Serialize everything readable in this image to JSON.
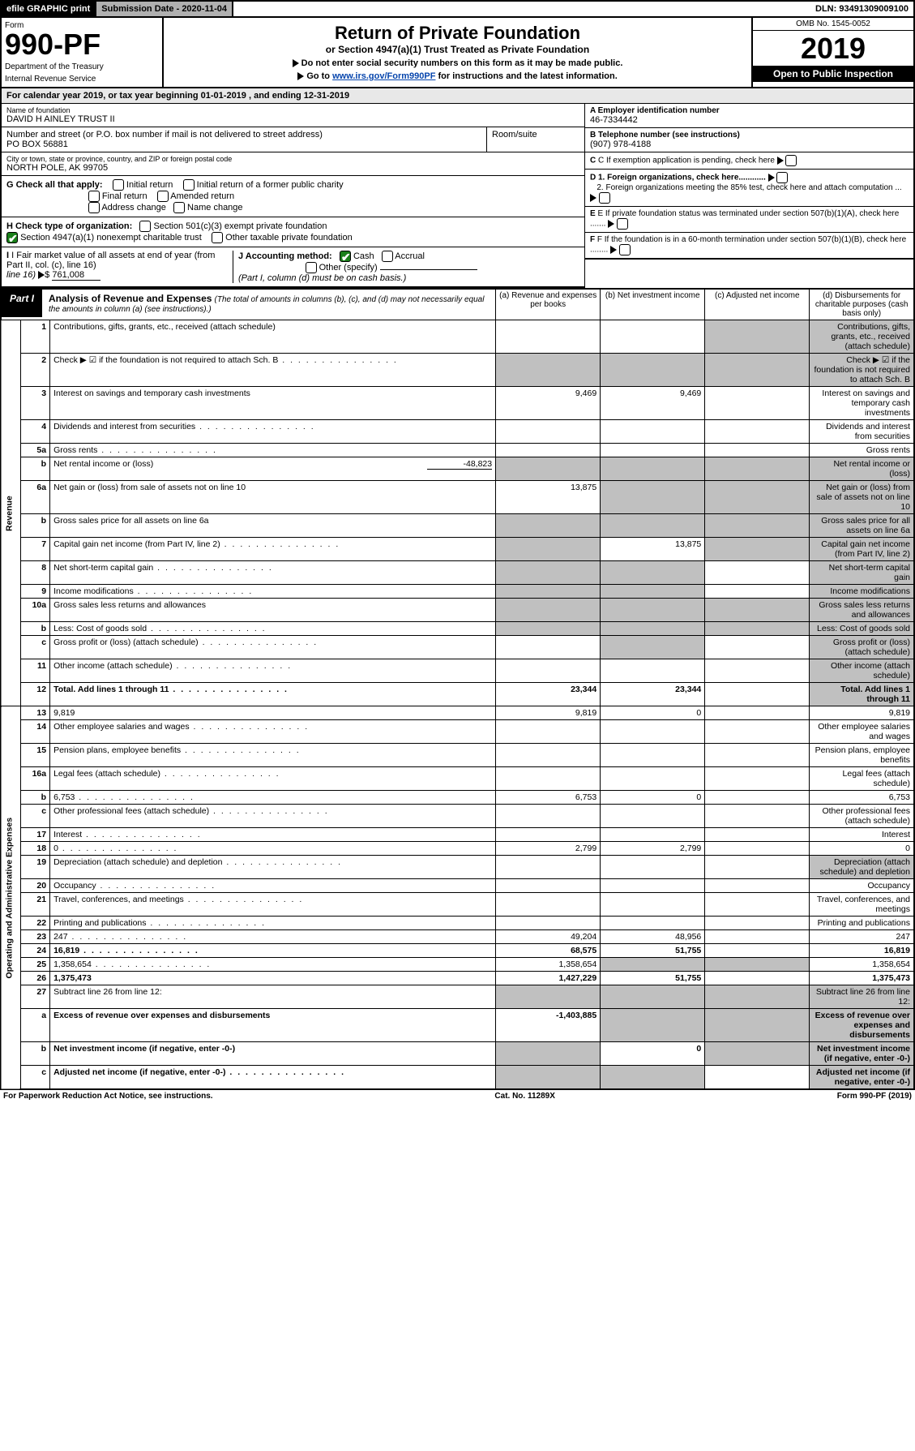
{
  "topbar": {
    "efile": "efile GRAPHIC print",
    "submission": "Submission Date - 2020-11-04",
    "dln": "DLN: 93491309009100"
  },
  "header": {
    "form_label": "Form",
    "form_no": "990-PF",
    "dept": "Department of the Treasury",
    "irs": "Internal Revenue Service",
    "title": "Return of Private Foundation",
    "subtitle": "or Section 4947(a)(1) Trust Treated as Private Foundation",
    "note1": "Do not enter social security numbers on this form as it may be made public.",
    "note2_pre": "Go to ",
    "note2_link": "www.irs.gov/Form990PF",
    "note2_post": " for instructions and the latest information.",
    "omb": "OMB No. 1545-0052",
    "year": "2019",
    "open": "Open to Public Inspection"
  },
  "calyear": "For calendar year 2019, or tax year beginning 01-01-2019                         , and ending 12-31-2019",
  "name_lbl": "Name of foundation",
  "name_val": "DAVID H AINLEY TRUST II",
  "addr_lbl": "Number and street (or P.O. box number if mail is not delivered to street address)",
  "addr_val": "PO BOX 56881",
  "room_lbl": "Room/suite",
  "city_lbl": "City or town, state or province, country, and ZIP or foreign postal code",
  "city_val": "NORTH POLE, AK  99705",
  "ein_lbl": "A Employer identification number",
  "ein_val": "46-7334442",
  "tel_lbl": "B Telephone number (see instructions)",
  "tel_val": "(907) 978-4188",
  "c_lbl": "C If exemption application is pending, check here",
  "d1_lbl": "D 1. Foreign organizations, check here............",
  "d2_lbl": "2. Foreign organizations meeting the 85% test, check here and attach computation ...",
  "e_lbl": "E If private foundation status was terminated under section 507(b)(1)(A), check here .......",
  "f_lbl": "F If the foundation is in a 60-month termination under section 507(b)(1)(B), check here ........",
  "g_lbl": "G Check all that apply:",
  "g_opts": {
    "initial": "Initial return",
    "initial_former": "Initial return of a former public charity",
    "final": "Final return",
    "amended": "Amended return",
    "address": "Address change",
    "name": "Name change"
  },
  "h_lbl": "H Check type of organization:",
  "h_opts": {
    "c3": "Section 501(c)(3) exempt private foundation",
    "a1": "Section 4947(a)(1) nonexempt charitable trust",
    "other": "Other taxable private foundation"
  },
  "i_lbl": "I Fair market value of all assets at end of year (from Part II, col. (c), line 16) ",
  "i_val": "761,008",
  "j_lbl": "J Accounting method:",
  "j_opts": {
    "cash": "Cash",
    "accrual": "Accrual",
    "other": "Other (specify)"
  },
  "j_note": "(Part I, column (d) must be on cash basis.)",
  "part1": {
    "tag": "Part I",
    "title": "Analysis of Revenue and Expenses",
    "desc": "(The total of amounts in columns (b), (c), and (d) may not necessarily equal the amounts in column (a) (see instructions).)"
  },
  "cols": {
    "a": "(a)   Revenue and expenses per books",
    "b": "(b)  Net investment income",
    "c": "(c)  Adjusted net income",
    "d": "(d)  Disbursements for charitable purposes (cash basis only)"
  },
  "revenue_label": "Revenue",
  "expense_label": "Operating and Administrative Expenses",
  "rows": [
    {
      "n": "1",
      "d": "Contributions, gifts, grants, etc., received (attach schedule)",
      "a": "",
      "b": "",
      "grey_cd": true
    },
    {
      "n": "2",
      "d": "Check ▶ ☑ if the foundation is not required to attach Sch. B",
      "dots": true,
      "a": "",
      "grey_abcd": true,
      "nd_bold_not": true
    },
    {
      "n": "3",
      "d": "Interest on savings and temporary cash investments",
      "a": "9,469",
      "b": "9,469"
    },
    {
      "n": "4",
      "d": "Dividends and interest from securities",
      "dots": true,
      "a": "",
      "b": ""
    },
    {
      "n": "5a",
      "d": "Gross rents",
      "dots": true,
      "a": "",
      "b": ""
    },
    {
      "n": "b",
      "d": "Net rental income or (loss)",
      "extra": "-48,823",
      "grey_abcd": true
    },
    {
      "n": "6a",
      "d": "Net gain or (loss) from sale of assets not on line 10",
      "a": "13,875",
      "grey_bcd": true
    },
    {
      "n": "b",
      "d": "Gross sales price for all assets on line 6a",
      "grey_abcd": true
    },
    {
      "n": "7",
      "d": "Capital gain net income (from Part IV, line 2)",
      "dots": true,
      "grey_a": true,
      "b": "13,875",
      "grey_cd": true
    },
    {
      "n": "8",
      "d": "Net short-term capital gain",
      "dots": true,
      "grey_ab": true,
      "grey_d": true
    },
    {
      "n": "9",
      "d": "Income modifications",
      "dots": true,
      "grey_ab": true,
      "grey_d": true
    },
    {
      "n": "10a",
      "d": "Gross sales less returns and allowances",
      "grey_abcd": true
    },
    {
      "n": "b",
      "d": "Less: Cost of goods sold",
      "dots": true,
      "grey_abcd": true
    },
    {
      "n": "c",
      "d": "Gross profit or (loss) (attach schedule)",
      "dots": true,
      "grey_b": true,
      "grey_d": true
    },
    {
      "n": "11",
      "d": "Other income (attach schedule)",
      "dots": true,
      "grey_d": true
    },
    {
      "n": "12",
      "d": "Total. Add lines 1 through 11",
      "dots": true,
      "bold": true,
      "a": "23,344",
      "b": "23,344",
      "grey_d": true
    }
  ],
  "exp_rows": [
    {
      "n": "13",
      "d": "9,819",
      "a": "9,819",
      "b": "0"
    },
    {
      "n": "14",
      "d": "Other employee salaries and wages",
      "dots": true
    },
    {
      "n": "15",
      "d": "Pension plans, employee benefits",
      "dots": true
    },
    {
      "n": "16a",
      "d": "Legal fees (attach schedule)",
      "dots": true
    },
    {
      "n": "b",
      "d": "6,753",
      "dots": true,
      "a": "6,753",
      "b": "0"
    },
    {
      "n": "c",
      "d": "Other professional fees (attach schedule)",
      "dots": true
    },
    {
      "n": "17",
      "d": "Interest",
      "dots": true
    },
    {
      "n": "18",
      "d": "0",
      "dots": true,
      "a": "2,799",
      "b": "2,799"
    },
    {
      "n": "19",
      "d": "Depreciation (attach schedule) and depletion",
      "dots": true,
      "grey_d": true
    },
    {
      "n": "20",
      "d": "Occupancy",
      "dots": true
    },
    {
      "n": "21",
      "d": "Travel, conferences, and meetings",
      "dots": true
    },
    {
      "n": "22",
      "d": "Printing and publications",
      "dots": true
    },
    {
      "n": "23",
      "d": "247",
      "dots": true,
      "a": "49,204",
      "b": "48,956"
    },
    {
      "n": "24",
      "d": "16,819",
      "dots": true,
      "bold": true,
      "a": "68,575",
      "b": "51,755"
    },
    {
      "n": "25",
      "d": "1,358,654",
      "dots": true,
      "a": "1,358,654",
      "grey_bc": true
    },
    {
      "n": "26",
      "d": "1,375,473",
      "bold": true,
      "a": "1,427,229",
      "b": "51,755"
    },
    {
      "n": "27",
      "d": "Subtract line 26 from line 12:",
      "grey_abcd": true
    },
    {
      "n": "a",
      "d": "Excess of revenue over expenses and disbursements",
      "bold": true,
      "a": "-1,403,885",
      "grey_bcd": true
    },
    {
      "n": "b",
      "d": "Net investment income (if negative, enter -0-)",
      "bold": true,
      "grey_a": true,
      "b": "0",
      "grey_cd": true
    },
    {
      "n": "c",
      "d": "Adjusted net income (if negative, enter -0-)",
      "bold": true,
      "dots": true,
      "grey_ab": true,
      "grey_d": true
    }
  ],
  "footer": {
    "left": "For Paperwork Reduction Act Notice, see instructions.",
    "mid": "Cat. No. 11289X",
    "right": "Form 990-PF (2019)"
  }
}
